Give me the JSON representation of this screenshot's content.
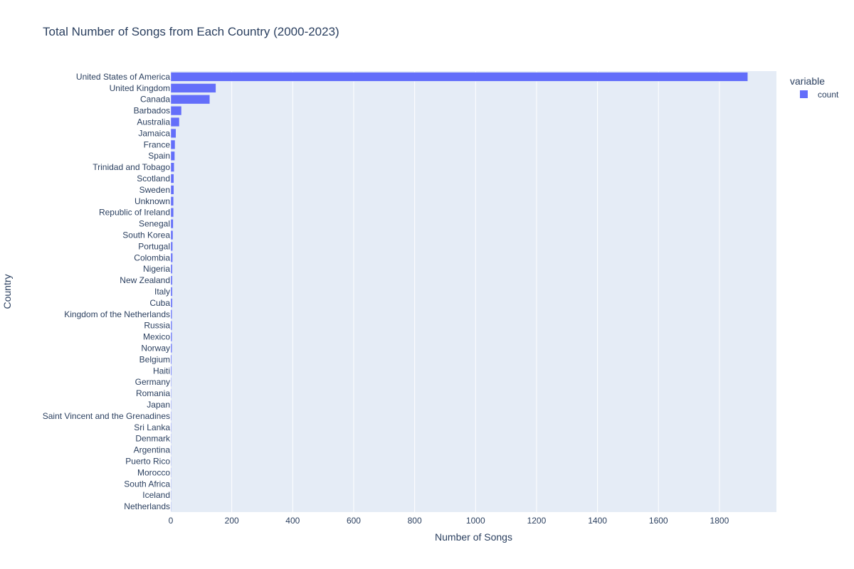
{
  "chart_data": {
    "type": "bar",
    "orientation": "horizontal",
    "title": "Total Number of Songs from Each Country (2000-2023)",
    "xlabel": "Number of Songs",
    "ylabel": "Country",
    "xlim": [
      0,
      1987
    ],
    "xticks": [
      0,
      200,
      400,
      600,
      800,
      1000,
      1200,
      1400,
      1600,
      1800
    ],
    "grid": true,
    "legend": {
      "title": "variable",
      "placement": "top-right"
    },
    "bar_color": "#636efa",
    "plot_bg": "#e5ecf6",
    "categories": [
      "United States of America",
      "United Kingdom",
      "Canada",
      "Barbados",
      "Australia",
      "Jamaica",
      "France",
      "Spain",
      "Trinidad and Tobago",
      "Scotland",
      "Sweden",
      "Unknown",
      "Republic of Ireland",
      "Senegal",
      "South Korea",
      "Portugal",
      "Colombia",
      "Nigeria",
      "New Zealand",
      "Italy",
      "Cuba",
      "Kingdom of the Netherlands",
      "Russia",
      "Mexico",
      "Norway",
      "Belgium",
      "Haiti",
      "Germany",
      "Romania",
      "Japan",
      "Saint Vincent and the Grenadines",
      "Sri Lanka",
      "Denmark",
      "Argentina",
      "Puerto Rico",
      "Morocco",
      "South Africa",
      "Iceland",
      "Netherlands"
    ],
    "series": [
      {
        "name": "count",
        "values": [
          1893,
          148,
          128,
          35,
          28,
          17,
          14,
          13,
          11,
          10,
          10,
          9,
          9,
          8,
          7,
          6,
          6,
          5,
          5,
          5,
          5,
          4,
          4,
          4,
          4,
          3,
          3,
          2,
          2,
          2,
          2,
          2,
          1,
          1,
          1,
          1,
          1,
          1,
          1
        ]
      }
    ]
  }
}
